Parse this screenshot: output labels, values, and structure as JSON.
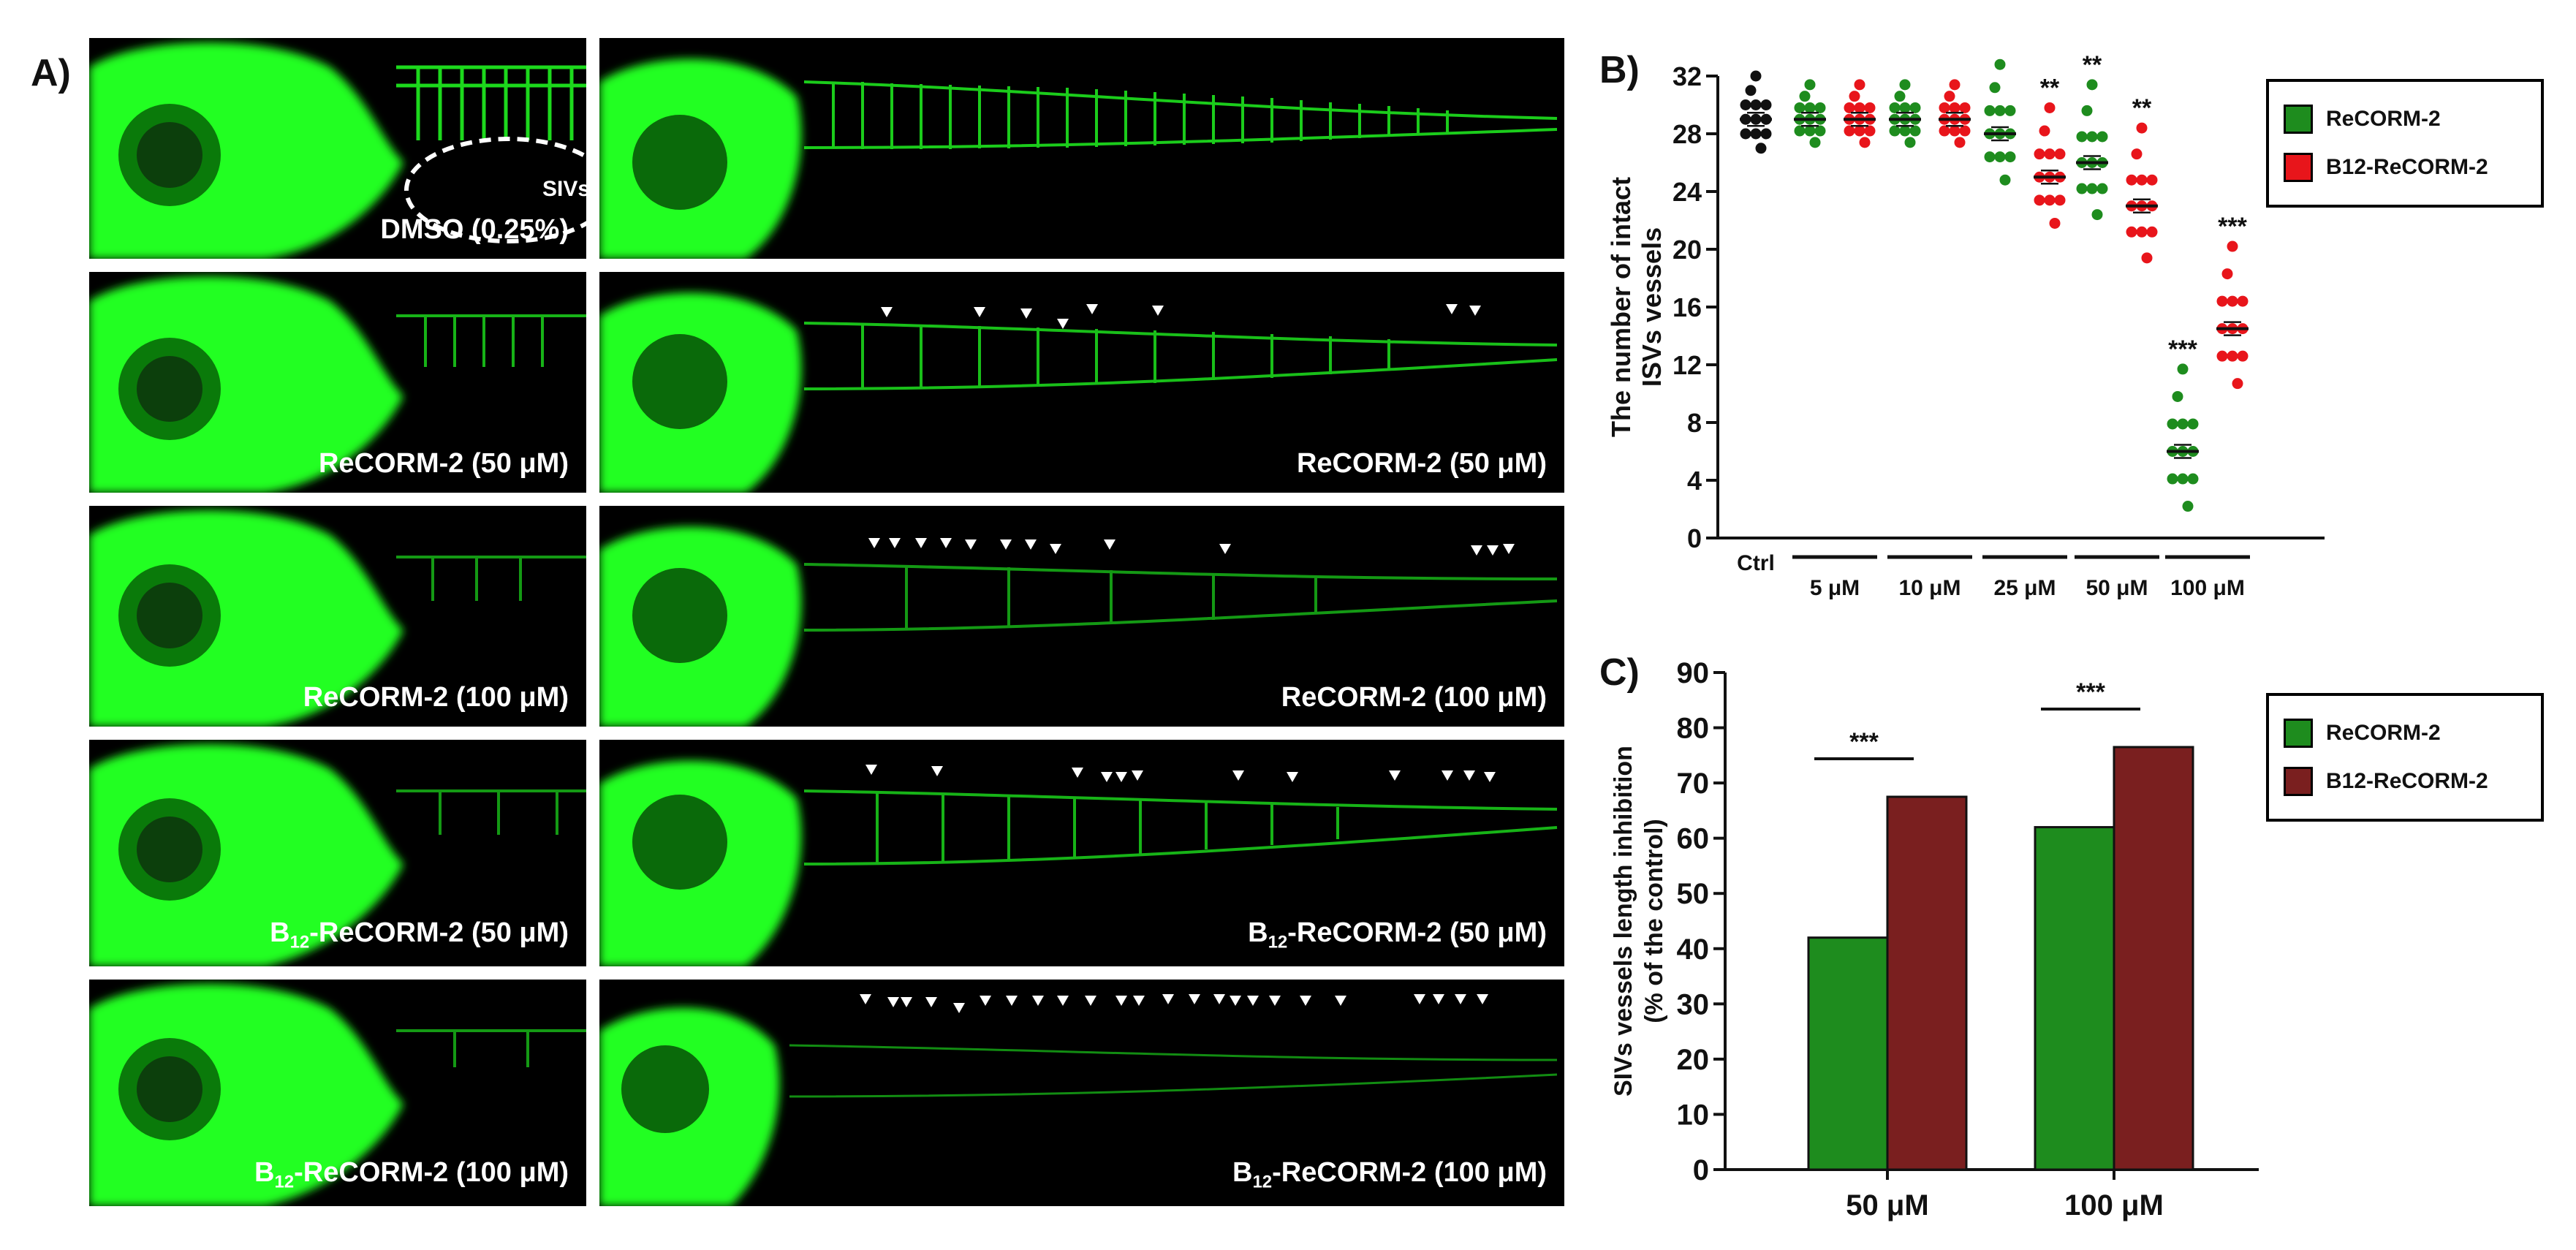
{
  "panel_letters": {
    "a": "A)",
    "b": "B)",
    "c": "C)"
  },
  "tiles": {
    "dmso_label": "DMSO (0.25%)",
    "siv_label": "SIVs",
    "recorm_50": "ReCORM-2 (50 μM)",
    "recorm_100": "ReCORM-2 (100 μM)",
    "b12_prefix": "B",
    "b12_sub": "12",
    "b12_50_suffix": "-ReCORM-2 (50 μM)",
    "b12_100_suffix": "-ReCORM-2 (100 μM)"
  },
  "colors": {
    "recorm_green": "#1e8c1e",
    "b12_red": "#e8151b",
    "b12_maroon": "#7a1f1f",
    "fluorescence": "#22ff22"
  },
  "chart_data": [
    {
      "type": "scatter",
      "panel": "B)",
      "ylabel": [
        "The number of intact",
        "ISVs vessels"
      ],
      "ylim": [
        0,
        32
      ],
      "yticks": [
        0,
        4,
        8,
        12,
        16,
        20,
        24,
        28,
        32
      ],
      "ctrl_label": "Ctrl",
      "ctrl_value": 29,
      "groups": [
        "5 μM",
        "10 μM",
        "25 μM",
        "50 μM",
        "100 μM"
      ],
      "series": [
        {
          "name": "ReCORM-2",
          "color": "#1e8c1e",
          "means": [
            29,
            29,
            28,
            26,
            6
          ],
          "sig": [
            "",
            "",
            "",
            "**",
            "***"
          ]
        },
        {
          "name": "B12-ReCORM-2",
          "color": "#e8151b",
          "means": [
            29,
            29,
            25,
            23,
            14.5
          ],
          "sig": [
            "",
            "",
            "**",
            "**",
            "***"
          ]
        }
      ],
      "legend": [
        "ReCORM-2",
        "B12-ReCORM-2"
      ],
      "legend_position": "top-right"
    },
    {
      "type": "bar",
      "panel": "C)",
      "ylabel": [
        "SIVs vessels length inhibition",
        "(% of the control)"
      ],
      "ylim": [
        0,
        90
      ],
      "yticks": [
        0,
        10,
        20,
        30,
        40,
        50,
        60,
        70,
        80,
        90
      ],
      "categories": [
        "50 μM",
        "100 μM"
      ],
      "series": [
        {
          "name": "ReCORM-2",
          "color": "#1e8c1e",
          "values": [
            42,
            62
          ]
        },
        {
          "name": "B12-ReCORM-2",
          "color": "#7a1f1f",
          "values": [
            67.5,
            76.5
          ]
        }
      ],
      "sig": [
        "***",
        "***"
      ],
      "legend": [
        "ReCORM-2",
        "B12-ReCORM-2"
      ],
      "legend_position": "top-right"
    }
  ]
}
